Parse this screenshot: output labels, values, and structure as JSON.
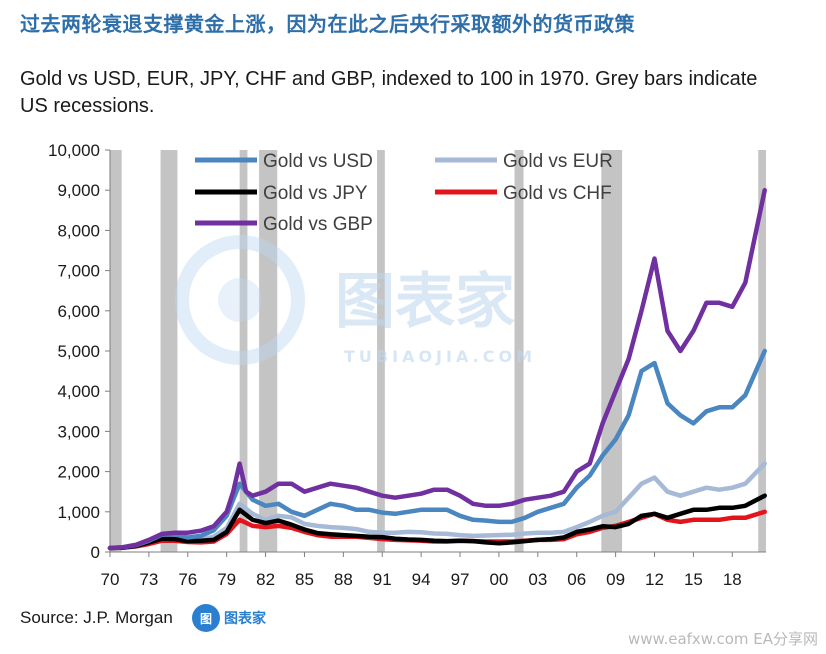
{
  "headline": "过去两轮衰退支撑黄金上涨，因为在此之后央行采取额外的货币政策",
  "subtitle": "Gold vs USD, EUR, JPY, CHF and GBP, indexed to 100 in 1970. Grey bars indicate US recessions.",
  "source": "Source: J.P. Morgan",
  "source_logo_text": "图表家",
  "watermark": {
    "main": "图表家",
    "sub": "TUBIAOJIA.COM"
  },
  "footer_watermark": "www.eafxw.com  EA分享网",
  "chart_data": {
    "type": "line",
    "title": "Gold vs USD, EUR, JPY, CHF and GBP, indexed to 100 in 1970. Grey bars indicate US recessions.",
    "xlabel": "",
    "ylabel": "",
    "xlim": [
      1970,
      2020.6
    ],
    "ylim": [
      0,
      10000
    ],
    "x_tick_values": [
      1970,
      1973,
      1976,
      1979,
      1982,
      1985,
      1988,
      1991,
      1994,
      1997,
      2000,
      2003,
      2006,
      2009,
      2012,
      2015,
      2018
    ],
    "x_tick_labels": [
      "70",
      "73",
      "76",
      "79",
      "82",
      "85",
      "88",
      "91",
      "94",
      "97",
      "00",
      "03",
      "06",
      "09",
      "12",
      "15",
      "18"
    ],
    "y_ticks": [
      0,
      1000,
      2000,
      3000,
      4000,
      5000,
      6000,
      7000,
      8000,
      9000,
      10000
    ],
    "y_tick_labels": [
      "0",
      "1,000",
      "2,000",
      "3,000",
      "4,000",
      "5,000",
      "6,000",
      "7,000",
      "8,000",
      "9,000",
      "10,000"
    ],
    "grid": false,
    "legend_position": "top",
    "recessions": [
      [
        1970.0,
        1970.9
      ],
      [
        1973.9,
        1975.2
      ],
      [
        1980.0,
        1980.6
      ],
      [
        1981.5,
        1982.9
      ],
      [
        1990.6,
        1991.2
      ],
      [
        2001.2,
        2001.9
      ],
      [
        2007.9,
        2009.5
      ],
      [
        2020.0,
        2020.6
      ]
    ],
    "series": [
      {
        "name": "Gold vs USD",
        "color": "#4a86c0",
        "x": [
          1970,
          1971,
          1972,
          1973,
          1974,
          1975,
          1976,
          1977,
          1978,
          1979,
          1980,
          1981,
          1982,
          1983,
          1984,
          1985,
          1986,
          1987,
          1988,
          1989,
          1990,
          1991,
          1992,
          1993,
          1994,
          1995,
          1996,
          1997,
          1998,
          1999,
          2000,
          2001,
          2002,
          2003,
          2004,
          2005,
          2006,
          2007,
          2008,
          2009,
          2010,
          2011,
          2012,
          2013,
          2014,
          2015,
          2016,
          2017,
          2018,
          2019,
          2020.5
        ],
        "values": [
          100,
          120,
          170,
          280,
          430,
          440,
          360,
          400,
          540,
          900,
          1700,
          1300,
          1150,
          1200,
          1000,
          900,
          1050,
          1200,
          1150,
          1050,
          1050,
          980,
          950,
          1000,
          1050,
          1050,
          1050,
          900,
          800,
          780,
          750,
          750,
          850,
          1000,
          1100,
          1200,
          1600,
          1900,
          2400,
          2800,
          3400,
          4500,
          4700,
          3700,
          3400,
          3200,
          3500,
          3600,
          3600,
          3900,
          5000
        ]
      },
      {
        "name": "Gold vs EUR",
        "color": "#a6b9d6",
        "x": [
          1970,
          1971,
          1972,
          1973,
          1974,
          1975,
          1976,
          1977,
          1978,
          1979,
          1980,
          1981,
          1982,
          1983,
          1984,
          1985,
          1986,
          1987,
          1988,
          1989,
          1990,
          1991,
          1992,
          1993,
          1994,
          1995,
          1996,
          1997,
          1998,
          1999,
          2000,
          2001,
          2002,
          2003,
          2004,
          2005,
          2006,
          2007,
          2008,
          2009,
          2010,
          2011,
          2012,
          2013,
          2014,
          2015,
          2016,
          2017,
          2018,
          2019,
          2020.5
        ],
        "values": [
          100,
          110,
          150,
          220,
          330,
          330,
          300,
          310,
          380,
          600,
          1200,
          950,
          800,
          900,
          860,
          700,
          650,
          620,
          600,
          570,
          500,
          480,
          480,
          500,
          490,
          460,
          450,
          420,
          400,
          410,
          420,
          430,
          460,
          480,
          480,
          500,
          620,
          750,
          900,
          1000,
          1350,
          1700,
          1850,
          1500,
          1400,
          1500,
          1600,
          1550,
          1600,
          1700,
          2200
        ]
      },
      {
        "name": "Gold vs JPY",
        "color": "#000000",
        "x": [
          1970,
          1971,
          1972,
          1973,
          1974,
          1975,
          1976,
          1977,
          1978,
          1979,
          1980,
          1981,
          1982,
          1983,
          1984,
          1985,
          1986,
          1987,
          1988,
          1989,
          1990,
          1991,
          1992,
          1993,
          1994,
          1995,
          1996,
          1997,
          1998,
          1999,
          2000,
          2001,
          2002,
          2003,
          2004,
          2005,
          2006,
          2007,
          2008,
          2009,
          2010,
          2011,
          2012,
          2013,
          2014,
          2015,
          2016,
          2017,
          2018,
          2019,
          2020.5
        ],
        "values": [
          100,
          110,
          150,
          240,
          330,
          320,
          270,
          280,
          300,
          500,
          1050,
          800,
          720,
          780,
          680,
          560,
          470,
          440,
          420,
          400,
          380,
          370,
          330,
          310,
          300,
          280,
          270,
          280,
          270,
          240,
          220,
          240,
          270,
          300,
          320,
          360,
          500,
          560,
          640,
          620,
          700,
          900,
          950,
          850,
          950,
          1050,
          1050,
          1100,
          1100,
          1150,
          1400
        ]
      },
      {
        "name": "Gold vs CHF",
        "color": "#e3141c",
        "x": [
          1970,
          1971,
          1972,
          1973,
          1974,
          1975,
          1976,
          1977,
          1978,
          1979,
          1980,
          1981,
          1982,
          1983,
          1984,
          1985,
          1986,
          1987,
          1988,
          1989,
          1990,
          1991,
          1992,
          1993,
          1994,
          1995,
          1996,
          1997,
          1998,
          1999,
          2000,
          2001,
          2002,
          2003,
          2004,
          2005,
          2006,
          2007,
          2008,
          2009,
          2010,
          2011,
          2012,
          2013,
          2014,
          2015,
          2016,
          2017,
          2018,
          2019,
          2020.5
        ],
        "values": [
          100,
          110,
          140,
          200,
          280,
          280,
          250,
          240,
          260,
          450,
          800,
          650,
          620,
          650,
          600,
          500,
          420,
          380,
          380,
          380,
          350,
          320,
          300,
          290,
          280,
          260,
          260,
          280,
          270,
          260,
          260,
          260,
          280,
          300,
          300,
          320,
          440,
          500,
          600,
          650,
          750,
          850,
          950,
          800,
          750,
          800,
          800,
          800,
          850,
          850,
          1000
        ]
      },
      {
        "name": "Gold vs GBP",
        "color": "#7030a0",
        "x": [
          1970,
          1971,
          1972,
          1973,
          1974,
          1975,
          1976,
          1977,
          1978,
          1979,
          1979.5,
          1980,
          1980.5,
          1981,
          1982,
          1983,
          1984,
          1985,
          1986,
          1987,
          1988,
          1989,
          1990,
          1991,
          1992,
          1993,
          1994,
          1995,
          1996,
          1997,
          1998,
          1999,
          2000,
          2001,
          2002,
          2003,
          2004,
          2005,
          2006,
          2007,
          2008,
          2009,
          2010,
          2011,
          2012,
          2013,
          2014,
          2015,
          2016,
          2017,
          2018,
          2019,
          2020.5
        ],
        "values": [
          100,
          120,
          180,
          300,
          450,
          480,
          480,
          530,
          640,
          1000,
          1500,
          2200,
          1500,
          1400,
          1500,
          1700,
          1700,
          1500,
          1600,
          1700,
          1650,
          1600,
          1500,
          1400,
          1350,
          1400,
          1450,
          1550,
          1550,
          1400,
          1200,
          1150,
          1150,
          1200,
          1300,
          1350,
          1400,
          1500,
          2000,
          2200,
          3200,
          4000,
          4800,
          6000,
          7300,
          5500,
          5000,
          5500,
          6200,
          6200,
          6100,
          6700,
          9000
        ]
      }
    ]
  }
}
